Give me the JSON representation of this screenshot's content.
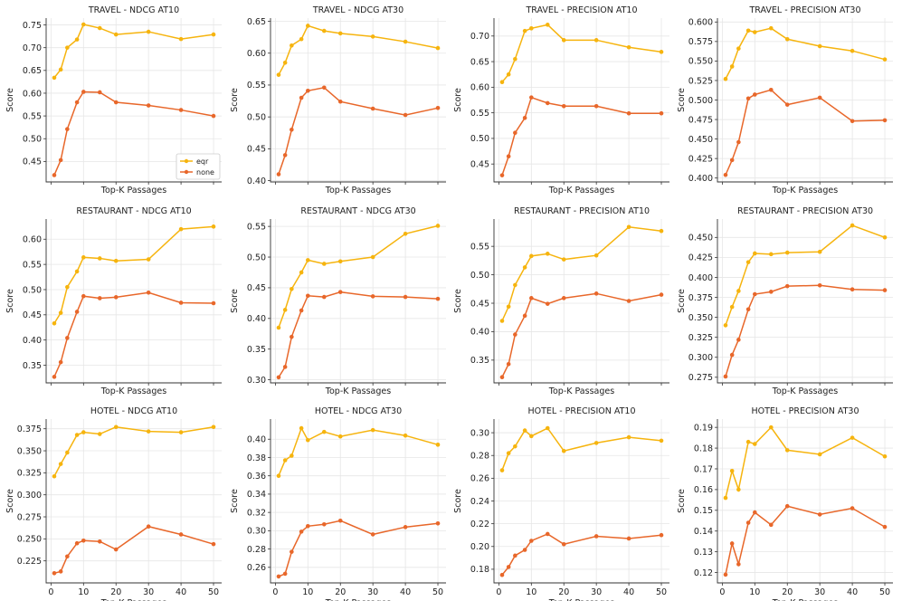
{
  "colors": {
    "eqr": "#f6b40e",
    "none": "#e8672a"
  },
  "chart_data": [
    {
      "type": "line",
      "title": "TRAVEL - NDCG AT10",
      "xlabel": "Top-K Passages",
      "ylabel": "Score",
      "x": [
        1,
        3,
        5,
        8,
        10,
        15,
        20,
        30,
        40,
        50
      ],
      "xlim": [
        -1.5,
        52.5
      ],
      "ylim": [
        0.405,
        0.765
      ],
      "yticks": [
        "0.45",
        "0.50",
        "0.55",
        "0.60",
        "0.65",
        "0.70",
        "0.75"
      ],
      "xticks": [
        "0",
        "10",
        "20",
        "30",
        "40",
        "50"
      ],
      "show_xticklabels": false,
      "legend": {
        "position": "lower-right",
        "entries": [
          "eqr",
          "none"
        ]
      },
      "series": [
        {
          "name": "eqr",
          "color": "#f6b40e",
          "values": [
            0.634,
            0.652,
            0.7,
            0.718,
            0.751,
            0.743,
            0.729,
            0.735,
            0.719,
            0.729
          ]
        },
        {
          "name": "none",
          "color": "#e8672a",
          "values": [
            0.42,
            0.453,
            0.521,
            0.58,
            0.603,
            0.602,
            0.58,
            0.573,
            0.563,
            0.55
          ]
        }
      ]
    },
    {
      "type": "line",
      "title": "TRAVEL - NDCG AT30",
      "xlabel": "Top-K Passages",
      "ylabel": "Score",
      "x": [
        1,
        3,
        5,
        8,
        10,
        15,
        20,
        30,
        40,
        50
      ],
      "xlim": [
        -1.5,
        52.5
      ],
      "ylim": [
        0.398,
        0.655
      ],
      "yticks": [
        "0.40",
        "0.45",
        "0.50",
        "0.55",
        "0.60",
        "0.65"
      ],
      "xticks": [
        "0",
        "10",
        "20",
        "30",
        "40",
        "50"
      ],
      "show_xticklabels": false,
      "series": [
        {
          "name": "eqr",
          "color": "#f6b40e",
          "values": [
            0.566,
            0.585,
            0.612,
            0.622,
            0.643,
            0.635,
            0.631,
            0.626,
            0.618,
            0.608
          ]
        },
        {
          "name": "none",
          "color": "#e8672a",
          "values": [
            0.41,
            0.44,
            0.48,
            0.53,
            0.541,
            0.546,
            0.524,
            0.513,
            0.503,
            0.514
          ]
        }
      ]
    },
    {
      "type": "line",
      "title": "TRAVEL - PRECISION AT10",
      "xlabel": "Top-K Passages",
      "ylabel": "Score",
      "x": [
        1,
        3,
        5,
        8,
        10,
        15,
        20,
        30,
        40,
        50
      ],
      "xlim": [
        -1.5,
        52.5
      ],
      "ylim": [
        0.415,
        0.735
      ],
      "yticks": [
        "0.45",
        "0.50",
        "0.55",
        "0.60",
        "0.65",
        "0.70"
      ],
      "xticks": [
        "0",
        "10",
        "20",
        "30",
        "40",
        "50"
      ],
      "show_xticklabels": false,
      "series": [
        {
          "name": "eqr",
          "color": "#f6b40e",
          "values": [
            0.61,
            0.625,
            0.655,
            0.71,
            0.715,
            0.722,
            0.692,
            0.692,
            0.678,
            0.669
          ]
        },
        {
          "name": "none",
          "color": "#e8672a",
          "values": [
            0.428,
            0.465,
            0.511,
            0.54,
            0.58,
            0.569,
            0.563,
            0.563,
            0.549,
            0.549
          ]
        }
      ]
    },
    {
      "type": "line",
      "title": "TRAVEL - PRECISION AT30",
      "xlabel": "Top-K Passages",
      "ylabel": "Score",
      "x": [
        1,
        3,
        5,
        8,
        10,
        15,
        20,
        30,
        40,
        50
      ],
      "xlim": [
        -1.5,
        52.5
      ],
      "ylim": [
        0.395,
        0.605
      ],
      "yticks": [
        "0.400",
        "0.425",
        "0.450",
        "0.475",
        "0.500",
        "0.525",
        "0.550",
        "0.575",
        "0.600"
      ],
      "xticks": [
        "0",
        "10",
        "20",
        "30",
        "40",
        "50"
      ],
      "show_xticklabels": false,
      "series": [
        {
          "name": "eqr",
          "color": "#f6b40e",
          "values": [
            0.527,
            0.543,
            0.566,
            0.589,
            0.587,
            0.592,
            0.578,
            0.569,
            0.563,
            0.552
          ]
        },
        {
          "name": "none",
          "color": "#e8672a",
          "values": [
            0.404,
            0.423,
            0.446,
            0.502,
            0.507,
            0.513,
            0.494,
            0.503,
            0.473,
            0.474
          ]
        }
      ]
    },
    {
      "type": "line",
      "title": "RESTAURANT - NDCG AT10",
      "xlabel": "Top-K Passages",
      "ylabel": "Score",
      "x": [
        1,
        3,
        5,
        8,
        10,
        15,
        20,
        30,
        40,
        50
      ],
      "xlim": [
        -1.5,
        52.5
      ],
      "ylim": [
        0.315,
        0.64
      ],
      "yticks": [
        "0.35",
        "0.40",
        "0.45",
        "0.50",
        "0.55",
        "0.60"
      ],
      "xticks": [
        "0",
        "10",
        "20",
        "30",
        "40",
        "50"
      ],
      "show_xticklabels": false,
      "series": [
        {
          "name": "eqr",
          "color": "#f6b40e",
          "values": [
            0.433,
            0.454,
            0.505,
            0.536,
            0.564,
            0.562,
            0.557,
            0.56,
            0.62,
            0.625
          ]
        },
        {
          "name": "none",
          "color": "#e8672a",
          "values": [
            0.327,
            0.356,
            0.404,
            0.456,
            0.487,
            0.483,
            0.485,
            0.494,
            0.474,
            0.473
          ]
        }
      ]
    },
    {
      "type": "line",
      "title": "RESTAURANT - NDCG AT30",
      "xlabel": "Top-K Passages",
      "ylabel": "Score",
      "x": [
        1,
        3,
        5,
        8,
        10,
        15,
        20,
        30,
        40,
        50
      ],
      "xlim": [
        -1.5,
        52.5
      ],
      "ylim": [
        0.295,
        0.562
      ],
      "yticks": [
        "0.30",
        "0.35",
        "0.40",
        "0.45",
        "0.50",
        "0.55"
      ],
      "xticks": [
        "0",
        "10",
        "20",
        "30",
        "40",
        "50"
      ],
      "show_xticklabels": false,
      "series": [
        {
          "name": "eqr",
          "color": "#f6b40e",
          "values": [
            0.385,
            0.414,
            0.448,
            0.475,
            0.495,
            0.489,
            0.493,
            0.5,
            0.538,
            0.551
          ]
        },
        {
          "name": "none",
          "color": "#e8672a",
          "values": [
            0.304,
            0.321,
            0.37,
            0.413,
            0.437,
            0.435,
            0.443,
            0.436,
            0.435,
            0.432
          ]
        }
      ]
    },
    {
      "type": "line",
      "title": "RESTAURANT - PRECISION AT10",
      "xlabel": "Top-K Passages",
      "ylabel": "Score",
      "x": [
        1,
        3,
        5,
        8,
        10,
        15,
        20,
        30,
        40,
        50
      ],
      "xlim": [
        -1.5,
        52.5
      ],
      "ylim": [
        0.31,
        0.598
      ],
      "yticks": [
        "0.35",
        "0.40",
        "0.45",
        "0.50",
        "0.55"
      ],
      "xticks": [
        "0",
        "10",
        "20",
        "30",
        "40",
        "50"
      ],
      "show_xticklabels": false,
      "series": [
        {
          "name": "eqr",
          "color": "#f6b40e",
          "values": [
            0.419,
            0.444,
            0.482,
            0.513,
            0.533,
            0.537,
            0.527,
            0.534,
            0.584,
            0.577
          ]
        },
        {
          "name": "none",
          "color": "#e8672a",
          "values": [
            0.32,
            0.343,
            0.395,
            0.428,
            0.459,
            0.449,
            0.459,
            0.467,
            0.454,
            0.465
          ]
        }
      ]
    },
    {
      "type": "line",
      "title": "RESTAURANT - PRECISION AT30",
      "xlabel": "Top-K Passages",
      "ylabel": "Score",
      "x": [
        1,
        3,
        5,
        8,
        10,
        15,
        20,
        30,
        40,
        50
      ],
      "xlim": [
        -1.5,
        52.5
      ],
      "ylim": [
        0.268,
        0.473
      ],
      "yticks": [
        "0.275",
        "0.300",
        "0.325",
        "0.350",
        "0.375",
        "0.400",
        "0.425",
        "0.450"
      ],
      "xticks": [
        "0",
        "10",
        "20",
        "30",
        "40",
        "50"
      ],
      "show_xticklabels": false,
      "series": [
        {
          "name": "eqr",
          "color": "#f6b40e",
          "values": [
            0.34,
            0.363,
            0.383,
            0.419,
            0.43,
            0.429,
            0.431,
            0.432,
            0.465,
            0.45
          ]
        },
        {
          "name": "none",
          "color": "#e8672a",
          "values": [
            0.276,
            0.303,
            0.322,
            0.36,
            0.379,
            0.382,
            0.389,
            0.39,
            0.385,
            0.384
          ]
        }
      ]
    },
    {
      "type": "line",
      "title": "HOTEL - NDCG AT10",
      "xlabel": "Top-K Passages",
      "ylabel": "Score",
      "x": [
        1,
        3,
        5,
        8,
        10,
        15,
        20,
        30,
        40,
        50
      ],
      "xlim": [
        -1.5,
        52.5
      ],
      "ylim": [
        0.2,
        0.386
      ],
      "yticks": [
        "0.225",
        "0.250",
        "0.275",
        "0.300",
        "0.325",
        "0.350",
        "0.375"
      ],
      "xticks": [
        "0",
        "10",
        "20",
        "30",
        "40",
        "50"
      ],
      "show_xticklabels": true,
      "series": [
        {
          "name": "eqr",
          "color": "#f6b40e",
          "values": [
            0.321,
            0.335,
            0.348,
            0.368,
            0.371,
            0.369,
            0.377,
            0.372,
            0.371,
            0.377
          ]
        },
        {
          "name": "none",
          "color": "#e8672a",
          "values": [
            0.211,
            0.213,
            0.23,
            0.245,
            0.248,
            0.247,
            0.238,
            0.264,
            0.255,
            0.244
          ]
        }
      ]
    },
    {
      "type": "line",
      "title": "HOTEL - NDCG AT30",
      "xlabel": "Top-K Passages",
      "ylabel": "Score",
      "x": [
        1,
        3,
        5,
        8,
        10,
        15,
        20,
        30,
        40,
        50
      ],
      "xlim": [
        -1.5,
        52.5
      ],
      "ylim": [
        0.243,
        0.422
      ],
      "yticks": [
        "0.26",
        "0.28",
        "0.30",
        "0.32",
        "0.34",
        "0.36",
        "0.38",
        "0.40"
      ],
      "xticks": [
        "0",
        "10",
        "20",
        "30",
        "40",
        "50"
      ],
      "show_xticklabels": true,
      "series": [
        {
          "name": "eqr",
          "color": "#f6b40e",
          "values": [
            0.36,
            0.377,
            0.382,
            0.412,
            0.399,
            0.408,
            0.403,
            0.41,
            0.404,
            0.394
          ]
        },
        {
          "name": "none",
          "color": "#e8672a",
          "values": [
            0.25,
            0.253,
            0.277,
            0.299,
            0.305,
            0.307,
            0.311,
            0.296,
            0.304,
            0.308
          ]
        }
      ]
    },
    {
      "type": "line",
      "title": "HOTEL - PRECISION AT10",
      "xlabel": "Top-K Passages",
      "ylabel": "Score",
      "x": [
        1,
        3,
        5,
        8,
        10,
        15,
        20,
        30,
        40,
        50
      ],
      "xlim": [
        -1.5,
        52.5
      ],
      "ylim": [
        0.168,
        0.312
      ],
      "yticks": [
        "0.18",
        "0.20",
        "0.22",
        "0.24",
        "0.26",
        "0.28",
        "0.30"
      ],
      "xticks": [
        "0",
        "10",
        "20",
        "30",
        "40",
        "50"
      ],
      "show_xticklabels": true,
      "series": [
        {
          "name": "eqr",
          "color": "#f6b40e",
          "values": [
            0.267,
            0.282,
            0.288,
            0.302,
            0.297,
            0.304,
            0.284,
            0.291,
            0.296,
            0.293
          ]
        },
        {
          "name": "none",
          "color": "#e8672a",
          "values": [
            0.175,
            0.182,
            0.192,
            0.197,
            0.205,
            0.211,
            0.202,
            0.209,
            0.207,
            0.21
          ]
        }
      ]
    },
    {
      "type": "line",
      "title": "HOTEL - PRECISION AT30",
      "xlabel": "Top-K Passages",
      "ylabel": "Score",
      "x": [
        1,
        3,
        5,
        8,
        10,
        15,
        20,
        30,
        40,
        50
      ],
      "xlim": [
        -1.5,
        52.5
      ],
      "ylim": [
        0.115,
        0.194
      ],
      "yticks": [
        "0.12",
        "0.13",
        "0.14",
        "0.15",
        "0.16",
        "0.17",
        "0.18",
        "0.19"
      ],
      "xticks": [
        "0",
        "10",
        "20",
        "30",
        "40",
        "50"
      ],
      "show_xticklabels": true,
      "series": [
        {
          "name": "eqr",
          "color": "#f6b40e",
          "values": [
            0.156,
            0.169,
            0.16,
            0.183,
            0.182,
            0.19,
            0.179,
            0.177,
            0.185,
            0.176
          ]
        },
        {
          "name": "none",
          "color": "#e8672a",
          "values": [
            0.119,
            0.134,
            0.124,
            0.144,
            0.149,
            0.143,
            0.152,
            0.148,
            0.151,
            0.142
          ]
        }
      ]
    }
  ]
}
